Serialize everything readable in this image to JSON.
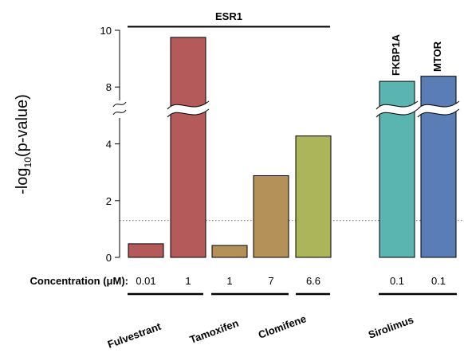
{
  "chart_data": {
    "type": "bar",
    "ylabel_main": "-log",
    "ylabel_sub": "10",
    "ylabel_tail": "(p-value)",
    "y_ticks_lower": [
      "0",
      "2",
      "4"
    ],
    "y_ticks_upper": [
      "8",
      "10"
    ],
    "significance_line": 1.3,
    "concentration_label": "Concentration (μM):",
    "bars": [
      {
        "drug": "Fulvestrant",
        "concentration": "0.01",
        "value": 0.48,
        "color": "#b55a5a"
      },
      {
        "drug": "Fulvestrant",
        "concentration": "1",
        "value": 9.75,
        "color": "#b55a5a"
      },
      {
        "drug": "Tamoxifen",
        "concentration": "1",
        "value": 0.42,
        "color": "#b5915a"
      },
      {
        "drug": "Tamoxifen",
        "concentration": "7",
        "value": 2.88,
        "color": "#b5915a"
      },
      {
        "drug": "Clomifene",
        "concentration": "6.6",
        "value": 4.28,
        "color": "#adb55a"
      },
      {
        "drug": "Sirolimus",
        "concentration": "0.1",
        "value": 8.2,
        "color": "#5ab5b0"
      },
      {
        "drug": "Sirolimus",
        "concentration": "0.1",
        "value": 8.38,
        "color": "#5a7db5"
      }
    ],
    "drugs": [
      "Fulvestrant",
      "Tamoxifen",
      "Clomifene",
      "Sirolimus"
    ],
    "targets": [
      "ESR1",
      "FKBP1A",
      "MTOR"
    ]
  }
}
